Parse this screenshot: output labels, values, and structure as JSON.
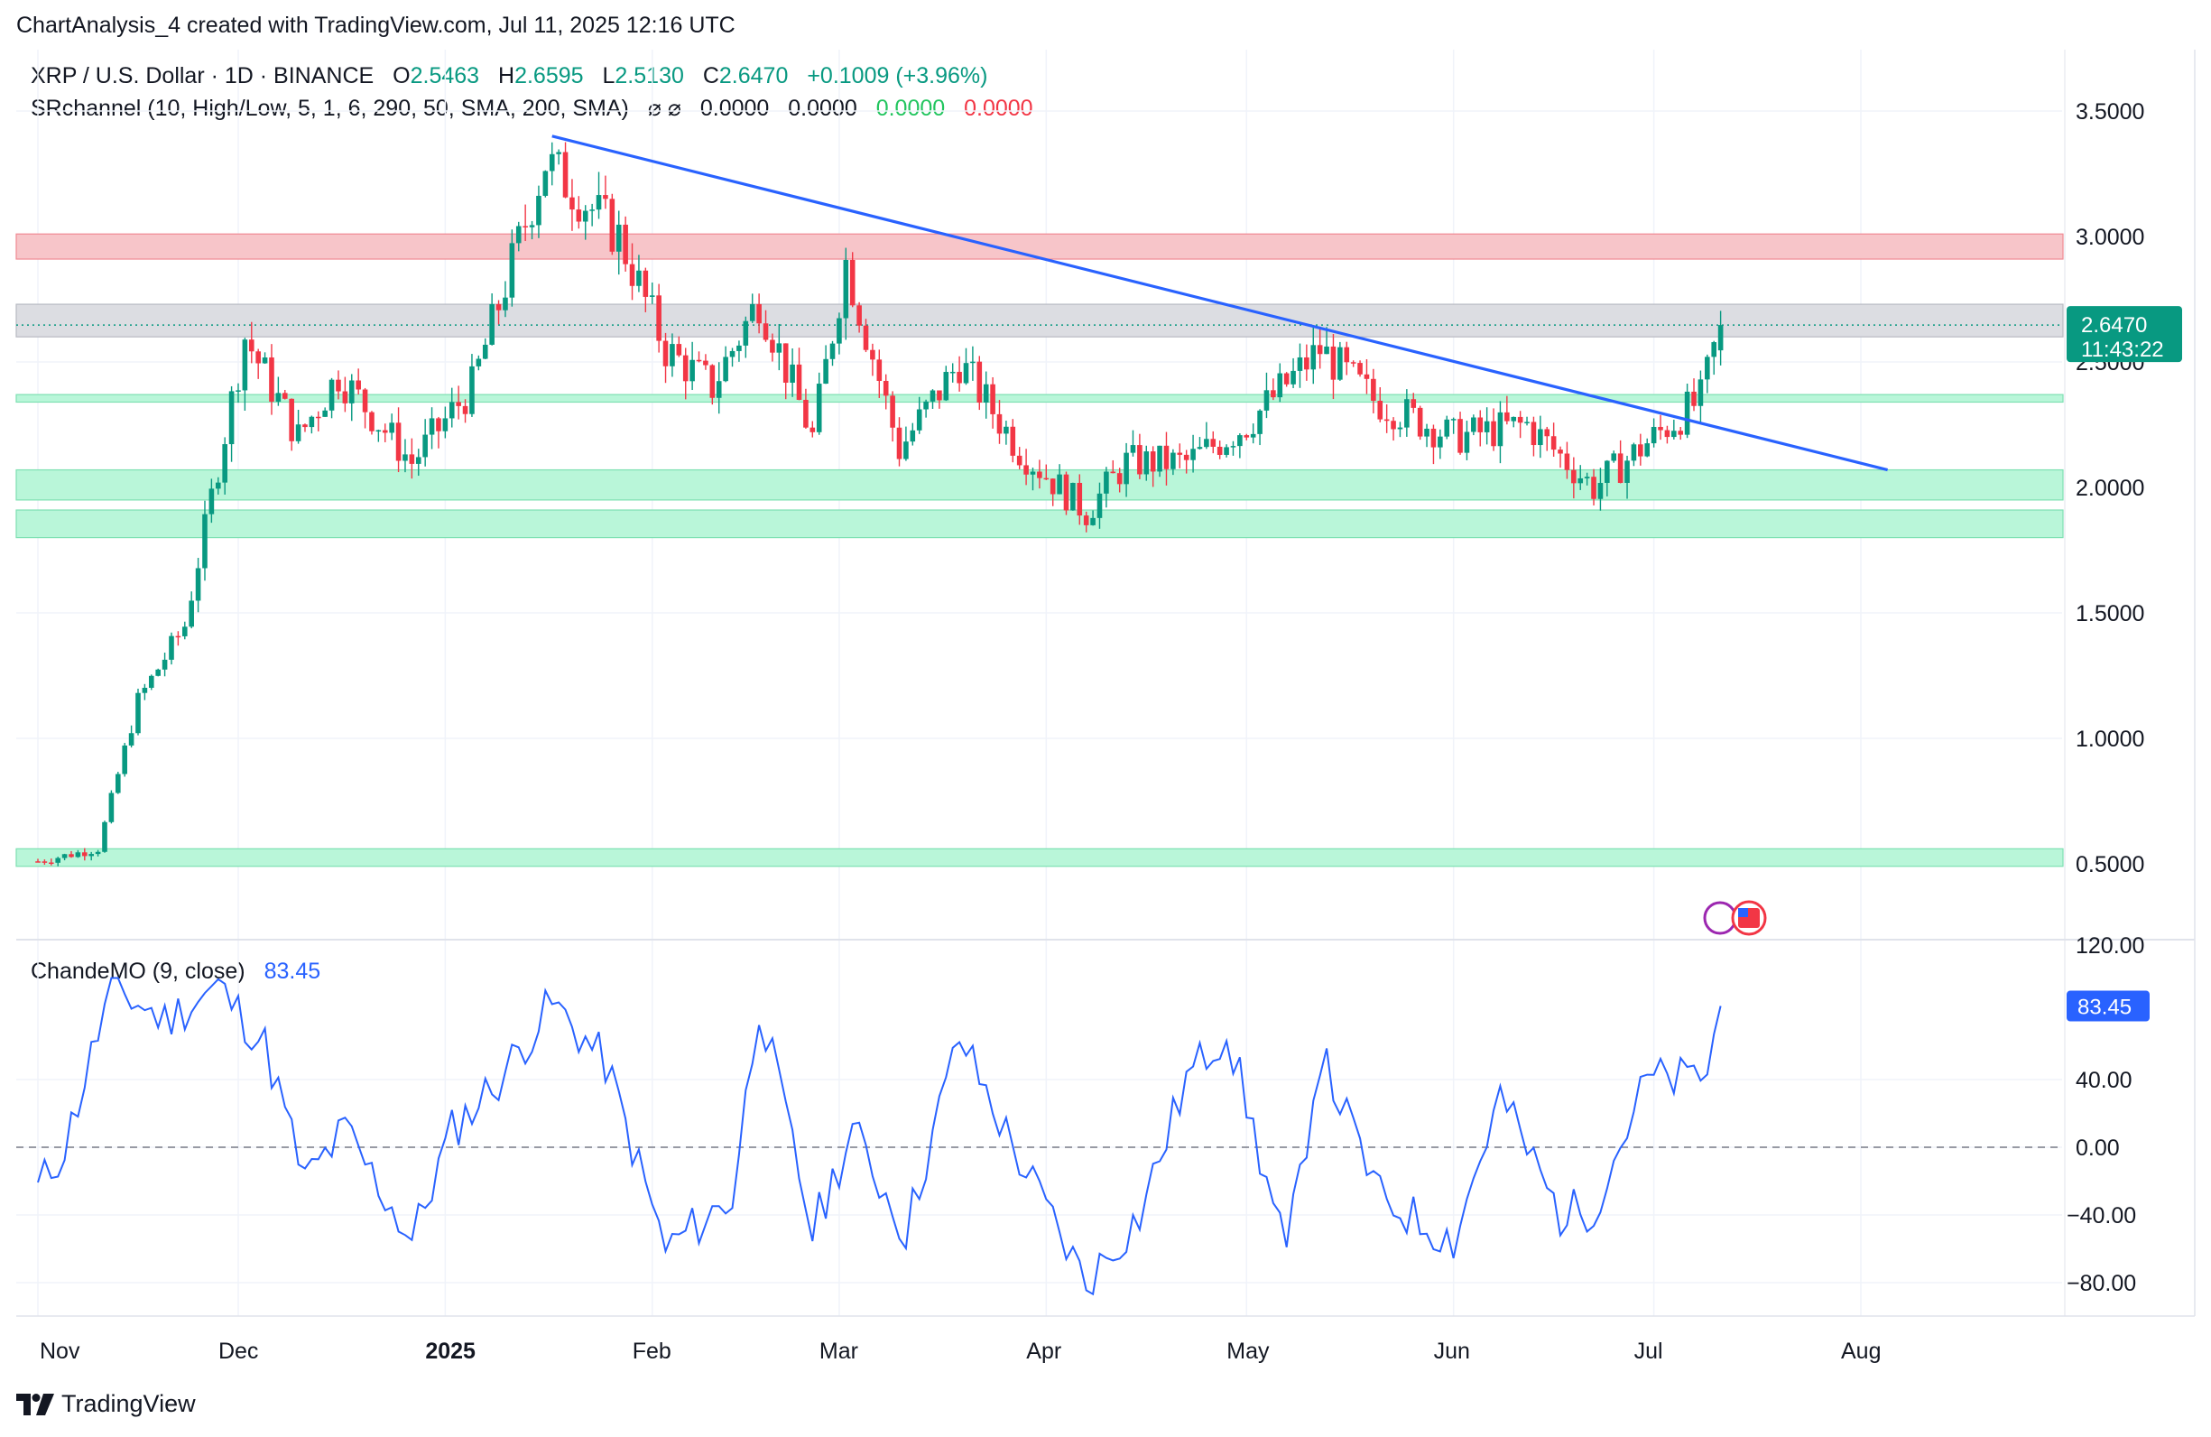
{
  "header": {
    "text": "ChartAnalysis_4 created with TradingView.com, Jul 11, 2025 12:16 UTC"
  },
  "legend": {
    "symbol": "XRP / U.S. Dollar · 1D · BINANCE",
    "o_label": "O",
    "o": "2.5463",
    "h_label": "H",
    "h": "2.6595",
    "l_label": "L",
    "l": "2.5130",
    "c_label": "C",
    "c": "2.6470",
    "change": "+0.1009 (+3.96%)",
    "indicator": "SRchannel (10, High/Low, 5, 1, 6, 290, 50, SMA, 200, SMA)",
    "ind_icons": "⌀ ⌀",
    "ind_v1": "0.0000",
    "ind_v2": "0.0000",
    "ind_v3": "0.0000",
    "ind_v4": "0.0000",
    "cmo_title": "ChandeMO (9, close)",
    "cmo_value": "83.45"
  },
  "price_badge": {
    "value": "2.6470",
    "countdown": "11:43:22"
  },
  "cmo_badge": {
    "value": "83.45"
  },
  "footer": {
    "brand": "TradingView"
  },
  "colors": {
    "up": "#089981",
    "down": "#f23645",
    "trend": "#2962ff",
    "cmo": "#2962ff",
    "resistance_zone": "#f7c5c9",
    "support_zone": "#b9f6d9",
    "neutral_zone": "#dcdde2"
  },
  "chart_data": [
    {
      "type": "candlestick",
      "title": "XRP / U.S. Dollar · 1D · BINANCE",
      "x_ticks": [
        "Nov",
        "Dec",
        "2025",
        "Feb",
        "Mar",
        "Apr",
        "May",
        "Jun",
        "Jul",
        "Aug"
      ],
      "y_ticks": [
        "3.5000",
        "3.0000",
        "2.5000",
        "2.0000",
        "1.5000",
        "1.0000",
        "0.5000"
      ],
      "ylim": [
        0.3,
        3.65
      ],
      "last_close": 2.647,
      "key_points": [
        {
          "date": "2024-11-01",
          "price": 0.51
        },
        {
          "date": "2024-11-10",
          "price": 0.56
        },
        {
          "date": "2024-11-16",
          "price": 1.15
        },
        {
          "date": "2024-11-23",
          "price": 1.45
        },
        {
          "date": "2024-12-02",
          "price": 2.6
        },
        {
          "date": "2024-12-10",
          "price": 2.2
        },
        {
          "date": "2024-12-16",
          "price": 2.45
        },
        {
          "date": "2024-12-27",
          "price": 2.1
        },
        {
          "date": "2025-01-05",
          "price": 2.4
        },
        {
          "date": "2025-01-16",
          "price": 3.3
        },
        {
          "date": "2025-01-27",
          "price": 3.0
        },
        {
          "date": "2025-02-03",
          "price": 2.55
        },
        {
          "date": "2025-02-10",
          "price": 2.4
        },
        {
          "date": "2025-02-17",
          "price": 2.75
        },
        {
          "date": "2025-02-25",
          "price": 2.2
        },
        {
          "date": "2025-03-02",
          "price": 2.9
        },
        {
          "date": "2025-03-10",
          "price": 2.15
        },
        {
          "date": "2025-03-19",
          "price": 2.5
        },
        {
          "date": "2025-03-28",
          "price": 2.15
        },
        {
          "date": "2025-04-07",
          "price": 1.9
        },
        {
          "date": "2025-04-13",
          "price": 2.1
        },
        {
          "date": "2025-04-22",
          "price": 2.1
        },
        {
          "date": "2025-05-01",
          "price": 2.25
        },
        {
          "date": "2025-05-12",
          "price": 2.55
        },
        {
          "date": "2025-05-20",
          "price": 2.35
        },
        {
          "date": "2025-06-01",
          "price": 2.2
        },
        {
          "date": "2025-06-12",
          "price": 2.25
        },
        {
          "date": "2025-06-22",
          "price": 2.0
        },
        {
          "date": "2025-07-01",
          "price": 2.2
        },
        {
          "date": "2025-07-08",
          "price": 2.35
        },
        {
          "date": "2025-07-11",
          "price": 2.647
        }
      ],
      "trendline": [
        {
          "date": "2025-01-17",
          "price": 3.4
        },
        {
          "date": "2025-08-05",
          "price": 2.07
        }
      ],
      "zones": [
        {
          "kind": "resistance",
          "from": 2.91,
          "to": 3.01
        },
        {
          "kind": "neutral",
          "from": 2.6,
          "to": 2.73
        },
        {
          "kind": "support",
          "from": 2.34,
          "to": 2.37
        },
        {
          "kind": "support",
          "from": 1.95,
          "to": 2.07
        },
        {
          "kind": "support",
          "from": 1.8,
          "to": 1.91
        },
        {
          "kind": "support",
          "from": 0.49,
          "to": 0.56
        }
      ]
    },
    {
      "type": "line",
      "title": "ChandeMO (9, close)",
      "x_ticks": [
        "Nov",
        "Dec",
        "2025",
        "Feb",
        "Mar",
        "Apr",
        "May",
        "Jun",
        "Jul",
        "Aug"
      ],
      "y_ticks": [
        "120.00",
        "40.00",
        "0.00",
        "−40.00",
        "−80.00"
      ],
      "ylim": [
        -100,
        120
      ],
      "reference_line": 0,
      "last_value": 83.45,
      "key_points": [
        {
          "date": "2024-11-01",
          "value": -25
        },
        {
          "date": "2024-11-05",
          "value": 0
        },
        {
          "date": "2024-11-08",
          "value": 40
        },
        {
          "date": "2024-11-12",
          "value": 95
        },
        {
          "date": "2024-11-20",
          "value": 75
        },
        {
          "date": "2024-11-28",
          "value": 95
        },
        {
          "date": "2024-12-05",
          "value": 60
        },
        {
          "date": "2024-12-11",
          "value": -20
        },
        {
          "date": "2024-12-17",
          "value": 10
        },
        {
          "date": "2024-12-27",
          "value": -55
        },
        {
          "date": "2025-01-02",
          "value": 10
        },
        {
          "date": "2025-01-09",
          "value": 40
        },
        {
          "date": "2025-01-17",
          "value": 85
        },
        {
          "date": "2025-01-25",
          "value": 50
        },
        {
          "date": "2025-02-03",
          "value": -60
        },
        {
          "date": "2025-02-13",
          "value": -30
        },
        {
          "date": "2025-02-17",
          "value": 85
        },
        {
          "date": "2025-02-25",
          "value": -50
        },
        {
          "date": "2025-03-03",
          "value": 10
        },
        {
          "date": "2025-03-11",
          "value": -50
        },
        {
          "date": "2025-03-19",
          "value": 65
        },
        {
          "date": "2025-03-27",
          "value": 0
        },
        {
          "date": "2025-04-07",
          "value": -80
        },
        {
          "date": "2025-04-15",
          "value": -40
        },
        {
          "date": "2025-04-22",
          "value": 40
        },
        {
          "date": "2025-04-28",
          "value": 70
        },
        {
          "date": "2025-05-07",
          "value": -65
        },
        {
          "date": "2025-05-12",
          "value": 55
        },
        {
          "date": "2025-05-21",
          "value": -30
        },
        {
          "date": "2025-06-01",
          "value": -55
        },
        {
          "date": "2025-06-08",
          "value": 30
        },
        {
          "date": "2025-06-17",
          "value": -40
        },
        {
          "date": "2025-06-22",
          "value": -35
        },
        {
          "date": "2025-06-30",
          "value": 40
        },
        {
          "date": "2025-07-06",
          "value": 40
        },
        {
          "date": "2025-07-09",
          "value": 45
        },
        {
          "date": "2025-07-11",
          "value": 83.45
        }
      ]
    }
  ]
}
